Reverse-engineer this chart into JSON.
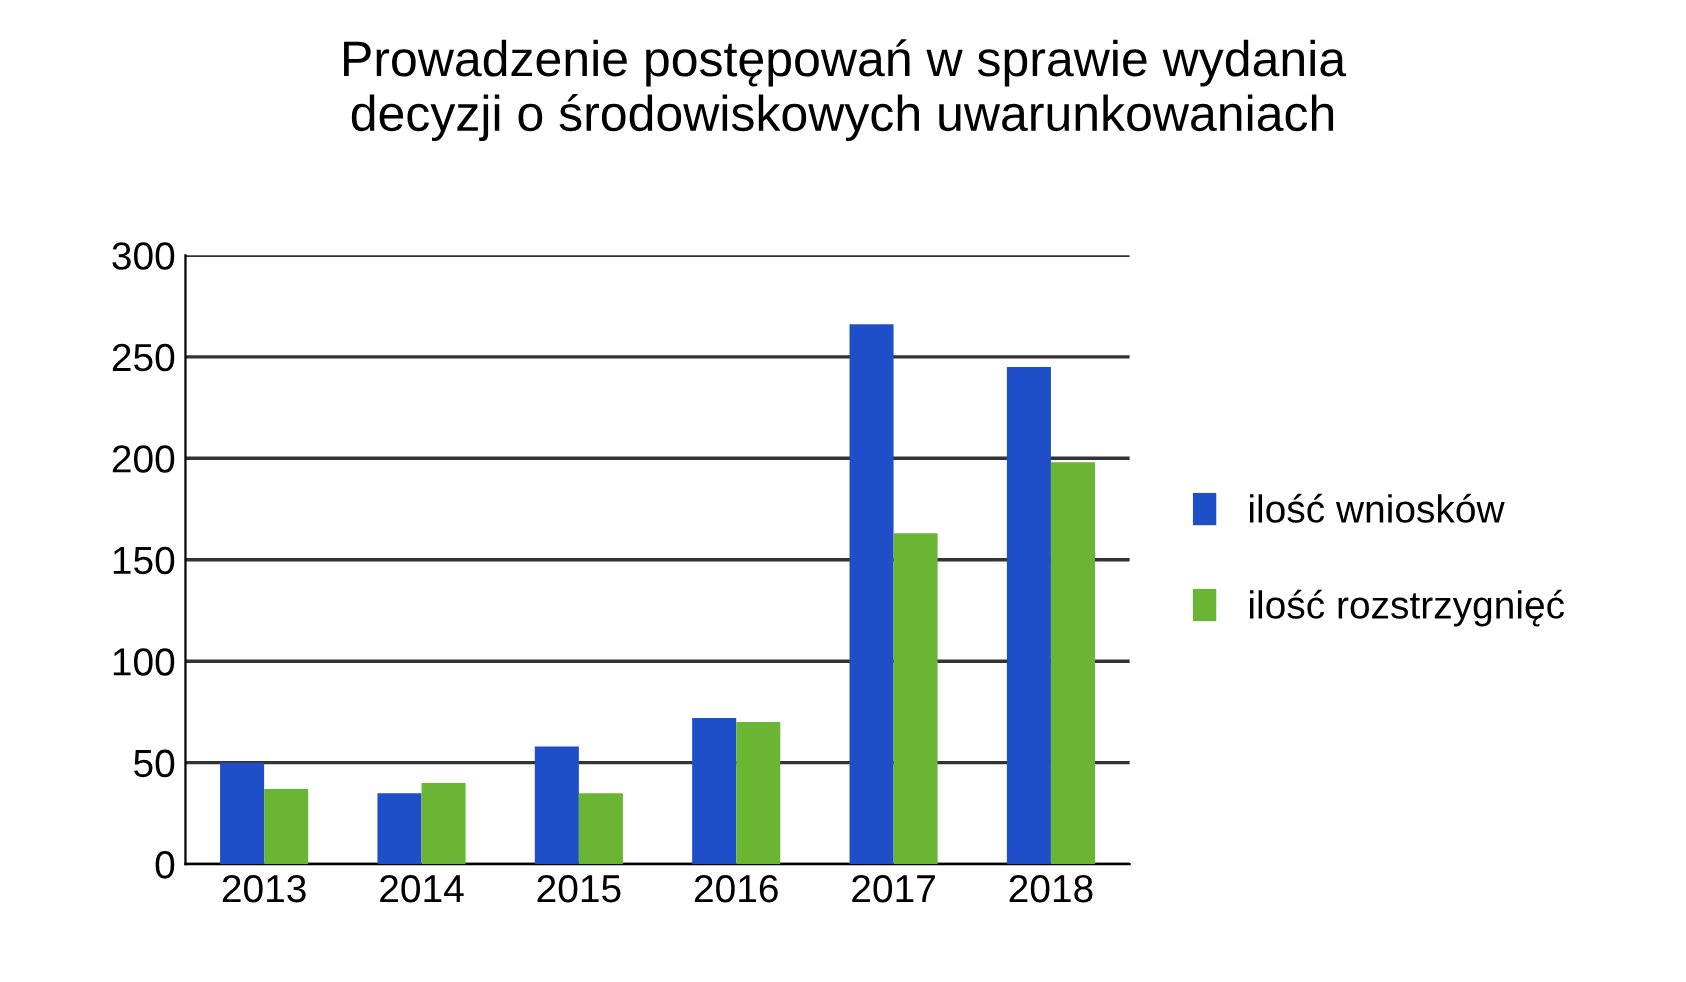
{
  "chart_data": {
    "type": "bar",
    "title": "Prowadzenie postępowań w sprawie wydania\ndecyzji o środowiskowych uwarunkowaniach",
    "categories": [
      "2013",
      "2014",
      "2015",
      "2016",
      "2017",
      "2018"
    ],
    "series": [
      {
        "name": "ilość wniosków",
        "color": "#1f4fc8",
        "values": [
          50,
          35,
          58,
          72,
          266,
          245
        ]
      },
      {
        "name": "ilość rozstrzygnięć",
        "color": "#6ab534",
        "values": [
          37,
          40,
          35,
          70,
          163,
          198
        ]
      }
    ],
    "ylim": [
      0,
      300
    ],
    "yticks": [
      0,
      50,
      100,
      150,
      200,
      250,
      300
    ],
    "grid": "y",
    "legend": "right"
  }
}
